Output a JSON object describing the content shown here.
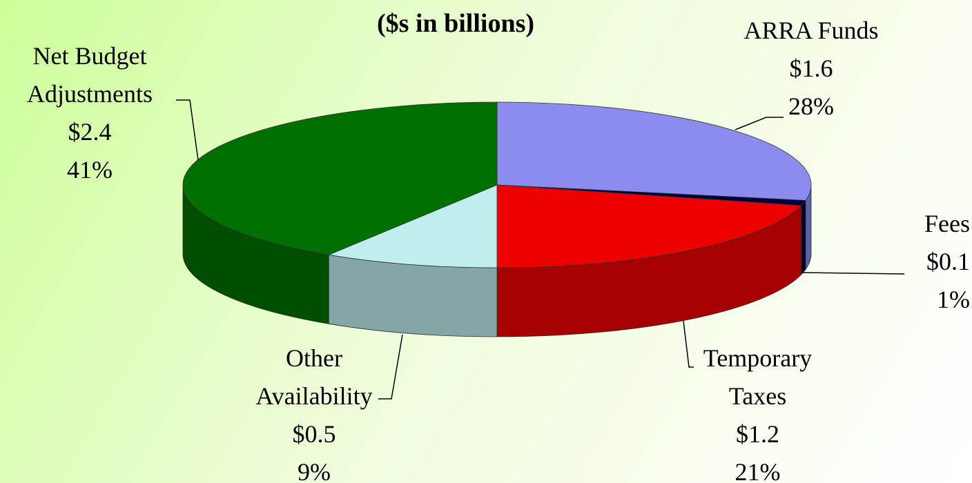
{
  "chart_data": {
    "type": "pie3d",
    "title": "($s in billions)",
    "categories": [
      "ARRA Funds",
      "Fees",
      "Temporary Taxes",
      "Other Availability",
      "Net Budget Adjustments"
    ],
    "values": [
      28,
      1,
      21,
      9,
      41
    ],
    "value_labels": [
      "28%",
      "1%",
      "21%",
      "9%",
      "41%"
    ],
    "amounts": [
      1.6,
      0.1,
      1.2,
      0.5,
      2.4
    ],
    "amount_labels": [
      "$1.6",
      "$0.1",
      "$1.2",
      "$0.5",
      "$2.4"
    ],
    "colors": [
      "#8c8cee",
      "#00003a",
      "#ee0000",
      "#bfeeee",
      "#007000"
    ]
  }
}
